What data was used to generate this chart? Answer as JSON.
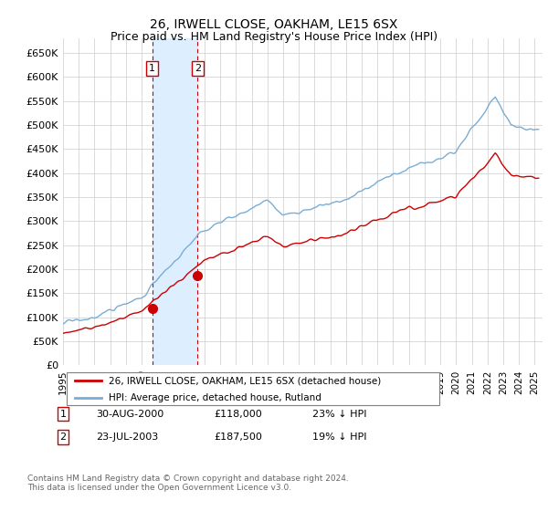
{
  "title": "26, IRWELL CLOSE, OAKHAM, LE15 6SX",
  "subtitle": "Price paid vs. HM Land Registry's House Price Index (HPI)",
  "yticks": [
    0,
    50000,
    100000,
    150000,
    200000,
    250000,
    300000,
    350000,
    400000,
    450000,
    500000,
    550000,
    600000,
    650000
  ],
  "ylim": [
    0,
    680000
  ],
  "xlim_start": 1995.0,
  "xlim_end": 2025.5,
  "transaction1": {
    "date_num": 2000.667,
    "price": 118000,
    "label": "1",
    "date_str": "30-AUG-2000",
    "amount": "£118,000",
    "pct": "23% ↓ HPI"
  },
  "transaction2": {
    "date_num": 2003.556,
    "price": 187500,
    "label": "2",
    "date_str": "23-JUL-2003",
    "amount": "£187,500",
    "pct": "19% ↓ HPI"
  },
  "hpi_color": "#7aadd4",
  "sold_color": "#cc0000",
  "vline_color": "#cc0000",
  "shade_color": "#ddeeff",
  "legend_label_sold": "26, IRWELL CLOSE, OAKHAM, LE15 6SX (detached house)",
  "legend_label_hpi": "HPI: Average price, detached house, Rutland",
  "footer": "Contains HM Land Registry data © Crown copyright and database right 2024.\nThis data is licensed under the Open Government Licence v3.0.",
  "background_color": "#ffffff",
  "grid_color": "#cccccc"
}
